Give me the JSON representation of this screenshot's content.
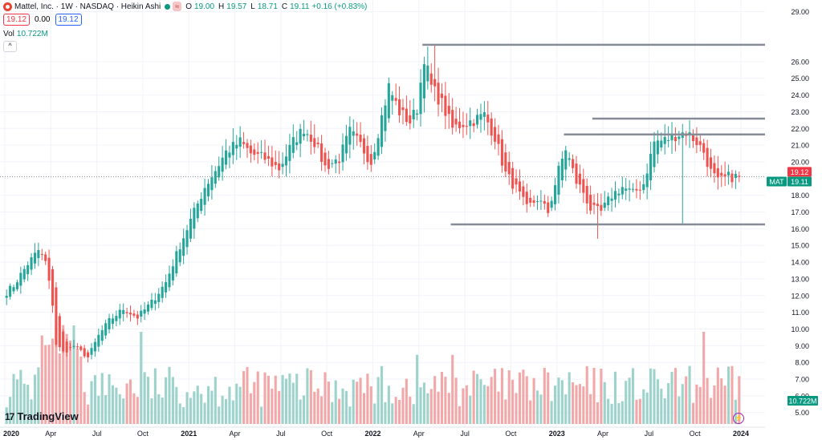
{
  "header": {
    "symbol_title": "Mattel, Inc. · 1W · NASDAQ · Heikin Ashi",
    "badge": "≈",
    "open_label": "O",
    "open": "19.00",
    "high_label": "H",
    "high": "19.57",
    "low_label": "L",
    "low": "18.71",
    "close_label": "C",
    "close": "19.11",
    "change": "+0.16 (+0.83%)",
    "sell_price": "19.12",
    "spread": "0.00",
    "buy_price": "19.12",
    "collapse_icon": "^"
  },
  "volume_legend": {
    "label": "Vol",
    "value": "10.722M"
  },
  "brand": {
    "logo_text": "TradingView",
    "mark": "17"
  },
  "colors": {
    "up": "#26a69a",
    "down": "#ef5350",
    "up_vol": "#9ed3cc",
    "down_vol": "#f2a8a8",
    "hline": "#868b98",
    "accent_green": "#089981",
    "accent_red": "#f23645"
  },
  "chart_data": {
    "type": "candlestick",
    "symbol": "MAT",
    "timeframe": "1W",
    "y_ticks": [
      "29.00",
      "26.00",
      "25.00",
      "24.00",
      "23.00",
      "22.00",
      "21.00",
      "20.00",
      "18.00",
      "17.00",
      "16.00",
      "15.00",
      "14.00",
      "13.00",
      "12.00",
      "11.00",
      "10.00",
      "9.00",
      "8.00",
      "7.00",
      "6.00",
      "5.00"
    ],
    "ylim": [
      4.7,
      29.4
    ],
    "x_ticks": [
      "2020",
      "Apr",
      "Jul",
      "Oct",
      "2021",
      "Apr",
      "Jul",
      "Oct",
      "2022",
      "Apr",
      "Jul",
      "Oct",
      "2023",
      "Apr",
      "Jul",
      "Oct",
      "2024"
    ],
    "x_tick_weeks": [
      0,
      13,
      26,
      39,
      52,
      65,
      78,
      91,
      104,
      117,
      130,
      143,
      156,
      169,
      182,
      195,
      208
    ],
    "horizontal_lines": [
      {
        "price": 27.01,
        "label": "27.01",
        "from_week": 118
      },
      {
        "price": 22.59,
        "label": "22.59",
        "from_week": 166
      },
      {
        "price": 21.64,
        "label": "21.64",
        "from_week": 158
      },
      {
        "price": 16.26,
        "label": "16.26",
        "from_week": 126
      }
    ],
    "last_price_labels": [
      {
        "price": 19.12,
        "label": "19.12",
        "style": "red"
      },
      {
        "price": 19.11,
        "label": "19.11",
        "style": "green",
        "symbol": "MAT"
      }
    ],
    "volume_label": "10.722M",
    "anchors": [
      [
        0,
        12.0
      ],
      [
        3,
        12.6
      ],
      [
        7,
        13.9
      ],
      [
        10,
        14.7
      ],
      [
        12,
        14.0
      ],
      [
        14,
        11.5
      ],
      [
        15,
        9.1
      ],
      [
        17,
        8.6
      ],
      [
        20,
        9.0
      ],
      [
        24,
        8.3
      ],
      [
        27,
        9.6
      ],
      [
        30,
        10.5
      ],
      [
        34,
        11.2
      ],
      [
        38,
        10.7
      ],
      [
        42,
        11.6
      ],
      [
        46,
        12.8
      ],
      [
        50,
        15.0
      ],
      [
        53,
        16.5
      ],
      [
        57,
        18.5
      ],
      [
        60,
        19.5
      ],
      [
        63,
        20.6
      ],
      [
        67,
        21.2
      ],
      [
        70,
        20.5
      ],
      [
        74,
        20.2
      ],
      [
        78,
        19.6
      ],
      [
        82,
        21.2
      ],
      [
        85,
        22.0
      ],
      [
        88,
        21.2
      ],
      [
        91,
        19.7
      ],
      [
        95,
        20.2
      ],
      [
        98,
        21.8
      ],
      [
        101,
        21.0
      ],
      [
        104,
        20.0
      ],
      [
        106,
        21.8
      ],
      [
        109,
        24.5
      ],
      [
        112,
        23.0
      ],
      [
        115,
        22.4
      ],
      [
        117,
        23.2
      ],
      [
        119,
        26.3
      ],
      [
        121,
        24.5
      ],
      [
        124,
        23.5
      ],
      [
        127,
        22.0
      ],
      [
        130,
        22.3
      ],
      [
        133,
        22.5
      ],
      [
        136,
        22.8
      ],
      [
        139,
        21.5
      ],
      [
        142,
        19.3
      ],
      [
        145,
        18.4
      ],
      [
        148,
        17.2
      ],
      [
        151,
        17.8
      ],
      [
        154,
        17.0
      ],
      [
        157,
        19.5
      ],
      [
        159,
        20.8
      ],
      [
        162,
        18.8
      ],
      [
        164,
        18.2
      ],
      [
        166,
        17.2
      ],
      [
        169,
        17.0
      ],
      [
        172,
        18.0
      ],
      [
        175,
        18.5
      ],
      [
        178,
        18.1
      ],
      [
        181,
        18.7
      ],
      [
        184,
        21.2
      ],
      [
        187,
        21.3
      ],
      [
        190,
        21.6
      ],
      [
        193,
        21.8
      ],
      [
        196,
        21.2
      ],
      [
        198,
        20.6
      ],
      [
        200,
        19.4
      ],
      [
        202,
        18.8
      ],
      [
        205,
        19.1
      ],
      [
        207,
        19.11
      ]
    ],
    "weeks": 208
  }
}
